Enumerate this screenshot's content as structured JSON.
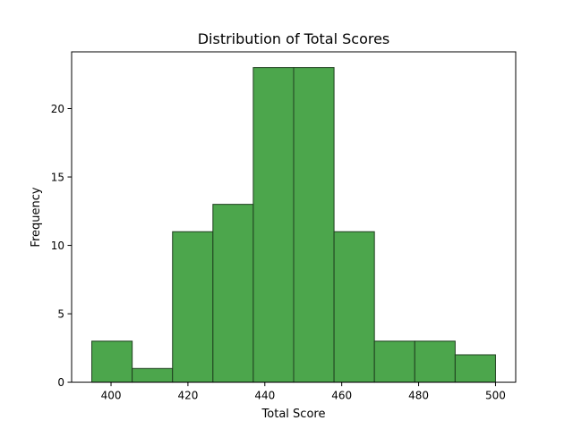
{
  "chart_data": {
    "type": "bar",
    "title": "Distribution of Total Scores",
    "xlabel": "Total Score",
    "ylabel": "Frequency",
    "bin_edges": [
      395,
      405.5,
      416,
      426.5,
      437,
      447.5,
      458,
      468.5,
      479,
      489.5,
      500
    ],
    "values": [
      3,
      1,
      11,
      13,
      23,
      23,
      11,
      3,
      3,
      2
    ],
    "xlim": [
      389.75,
      505.25
    ],
    "ylim": [
      0,
      24.15
    ],
    "xticks": [
      400,
      420,
      440,
      460,
      480,
      500
    ],
    "yticks": [
      0,
      5,
      10,
      15,
      20
    ],
    "grid": false,
    "colors": {
      "bar_fill": "#4ca64c",
      "bar_edge": "#1f3f1f"
    }
  }
}
